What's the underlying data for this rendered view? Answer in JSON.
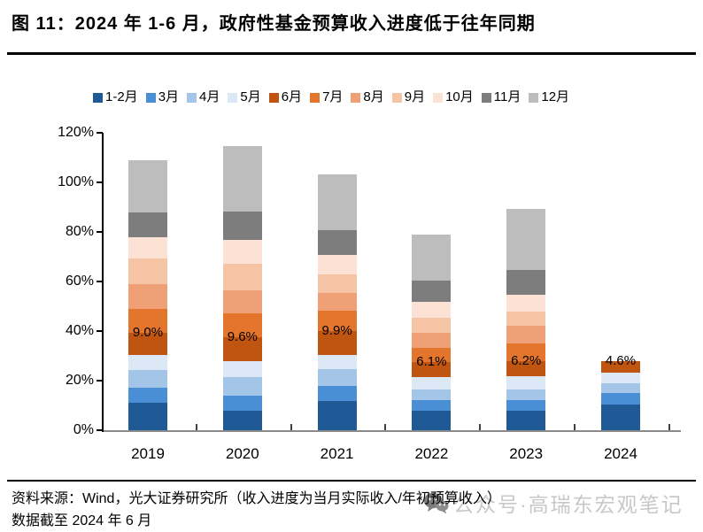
{
  "header": {
    "title": "图 11：2024 年 1-6 月，政府性基金预算收入进度低于往年同期"
  },
  "chart_data": {
    "type": "bar",
    "stacked": true,
    "title": "",
    "xlabel": "",
    "ylabel": "",
    "categories": [
      "2019",
      "2020",
      "2021",
      "2022",
      "2023",
      "2024"
    ],
    "series": [
      {
        "name": "1-2月",
        "color": "#1F5A96",
        "values": [
          11.0,
          8.0,
          11.8,
          7.7,
          7.7,
          10.5
        ]
      },
      {
        "name": "3月",
        "color": "#4A8FD6",
        "values": [
          6.0,
          5.8,
          6.1,
          4.5,
          4.5,
          4.5
        ]
      },
      {
        "name": "4月",
        "color": "#A3C6E8",
        "values": [
          7.2,
          7.5,
          6.6,
          4.2,
          4.4,
          4.0
        ]
      },
      {
        "name": "5月",
        "color": "#DCE8F5",
        "values": [
          6.0,
          6.6,
          5.7,
          5.0,
          5.2,
          4.3
        ]
      },
      {
        "name": "6月",
        "color": "#C05512",
        "values": [
          9.0,
          9.6,
          9.9,
          6.1,
          6.2,
          4.6
        ],
        "data_labels": [
          "9.0%",
          "9.6%",
          "9.9%",
          "6.1%",
          "6.2%",
          "4.6%"
        ]
      },
      {
        "name": "7月",
        "color": "#E4752D",
        "values": [
          9.7,
          9.6,
          8.2,
          5.8,
          6.9,
          0
        ]
      },
      {
        "name": "8月",
        "color": "#F0A077",
        "values": [
          10.2,
          9.3,
          6.9,
          6.0,
          7.2,
          0
        ]
      },
      {
        "name": "9月",
        "color": "#F5C4A4",
        "values": [
          10.2,
          10.8,
          7.8,
          6.2,
          5.7,
          0
        ]
      },
      {
        "name": "10月",
        "color": "#FBE2D5",
        "values": [
          8.4,
          9.6,
          7.6,
          6.4,
          6.7,
          0
        ]
      },
      {
        "name": "11月",
        "color": "#7D7D7D",
        "values": [
          10.3,
          11.5,
          10.2,
          8.4,
          10.2,
          0
        ]
      },
      {
        "name": "12月",
        "color": "#BDBDBD",
        "values": [
          21.0,
          26.5,
          22.5,
          18.7,
          24.7,
          0
        ]
      }
    ],
    "ylim": [
      0,
      120
    ],
    "ytick_step": 20,
    "ytick_labels": [
      "0%",
      "20%",
      "40%",
      "60%",
      "80%",
      "100%",
      "120%"
    ],
    "grid": false,
    "legend_position": "top"
  },
  "footer": {
    "source": "资料来源：Wind，光大证券研究所（收入进度为当月实际收入/年初预算收入）",
    "note": "数据截至 2024 年 6 月"
  },
  "watermark": {
    "icon": "wechat-icon",
    "text": "公众号·高瑞东宏观笔记"
  }
}
